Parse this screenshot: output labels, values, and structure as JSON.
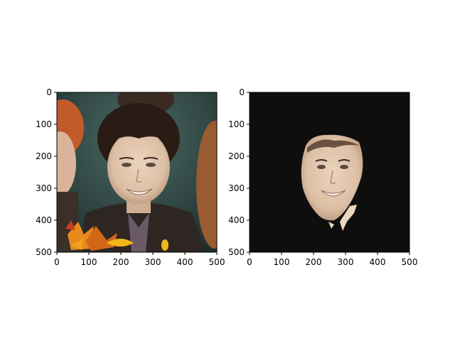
{
  "chart_data": [
    {
      "type": "image",
      "title": "",
      "content": "photo of a smiling young man with dark hair; orange autumn leaves in the bottom-left corner",
      "xlim": [
        0,
        500
      ],
      "ylim": [
        500,
        0
      ],
      "x_ticks": [
        0,
        100,
        200,
        300,
        400,
        500
      ],
      "y_ticks": [
        0,
        100,
        200,
        300,
        400,
        500
      ],
      "x_tick_labels": [
        "0",
        "100",
        "200",
        "300",
        "400",
        "500"
      ],
      "y_tick_labels": [
        "0",
        "100",
        "200",
        "300",
        "400",
        "500"
      ]
    },
    {
      "type": "image",
      "title": "",
      "content": "segmentation mask output: only the face region kept, rest black",
      "xlim": [
        0,
        500
      ],
      "ylim": [
        500,
        0
      ],
      "x_ticks": [
        0,
        100,
        200,
        300,
        400,
        500
      ],
      "y_ticks": [
        0,
        100,
        200,
        300,
        400,
        500
      ],
      "x_tick_labels": [
        "0",
        "100",
        "200",
        "300",
        "400",
        "500"
      ],
      "y_tick_labels": [
        "0",
        "100",
        "200",
        "300",
        "400",
        "500"
      ]
    }
  ],
  "colors": {
    "background": "#0e0e0e",
    "skin": "#e3c6ae",
    "hair": "#2a1c14",
    "leaf_orange": "#e8891c",
    "leaf_yellow": "#f2b619",
    "ginger_hair": "#c25a2a",
    "suit": "#2e2622"
  }
}
